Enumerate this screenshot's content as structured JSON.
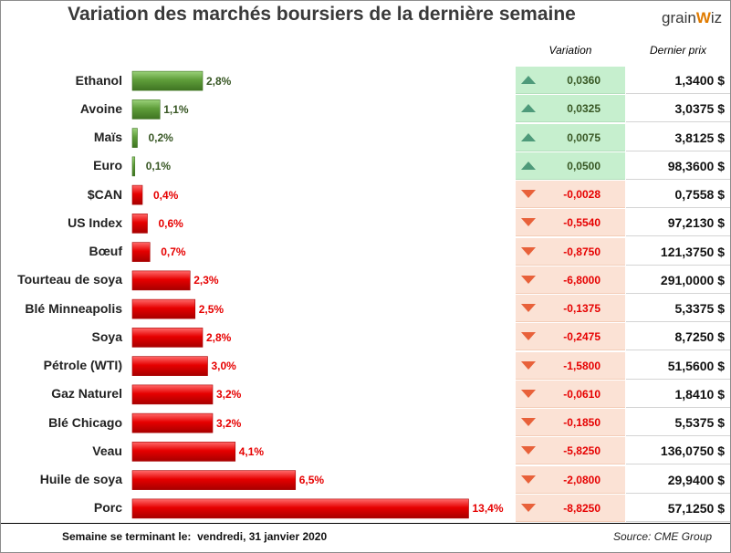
{
  "title": "Variation des marchés boursiers de la dernière semaine",
  "logo": {
    "part1": "grain",
    "part2": "W",
    "part3": "iz"
  },
  "headers": {
    "variation": "Variation",
    "price": "Dernier prix"
  },
  "footer": {
    "week_label": "Semaine se terminant le:",
    "date": "vendredi, 31 janvier 2020",
    "source": "Source: CME Group"
  },
  "colors": {
    "up_bar": "#5f9e3a",
    "down_bar": "#e60000",
    "up_bg": "#c6efce",
    "down_bg": "#fbe2d5",
    "up_text": "#375623",
    "down_text": "#e60000"
  },
  "chart_data": {
    "type": "bar",
    "orientation": "horizontal",
    "categories": [
      "Ethanol",
      "Avoine",
      "Maïs",
      "Euro",
      "$CAN",
      "US Index",
      "Bœuf",
      "Tourteau de soya",
      "Blé Minneapolis",
      "Soya",
      "Pétrole (WTI)",
      "Gaz Naturel",
      "Blé Chicago",
      "Veau",
      "Huile de soya",
      "Porc"
    ],
    "values": [
      2.8,
      1.1,
      0.2,
      0.1,
      0.4,
      0.6,
      0.7,
      2.3,
      2.5,
      2.8,
      3.0,
      3.2,
      3.2,
      4.1,
      6.5,
      13.4
    ],
    "value_labels": [
      "2,8%",
      "1,1%",
      "0,2%",
      "0,1%",
      "0,4%",
      "0,6%",
      "0,7%",
      "2,3%",
      "2,5%",
      "2,8%",
      "3,0%",
      "3,2%",
      "3,2%",
      "4,1%",
      "6,5%",
      "13,4%"
    ],
    "direction": [
      "up",
      "up",
      "up",
      "up",
      "down",
      "down",
      "down",
      "down",
      "down",
      "down",
      "down",
      "down",
      "down",
      "down",
      "down",
      "down"
    ],
    "unit": "%"
  },
  "table": {
    "variation": [
      "0,0360",
      "0,0325",
      "0,0075",
      "0,0500",
      "-0,0028",
      "-0,5540",
      "-0,8750",
      "-6,8000",
      "-0,1375",
      "-0,2475",
      "-1,5800",
      "-0,0610",
      "-0,1850",
      "-5,8250",
      "-2,0800",
      "-8,8250"
    ],
    "price": [
      "1,3400 $",
      "3,0375 $",
      "3,8125 $",
      "98,3600 $",
      "0,7558 $",
      "97,2130 $",
      "121,3750 $",
      "291,0000 $",
      "5,3375 $",
      "8,7250 $",
      "51,5600 $",
      "1,8410 $",
      "5,5375 $",
      "136,0750 $",
      "29,9400 $",
      "57,1250 $"
    ]
  }
}
